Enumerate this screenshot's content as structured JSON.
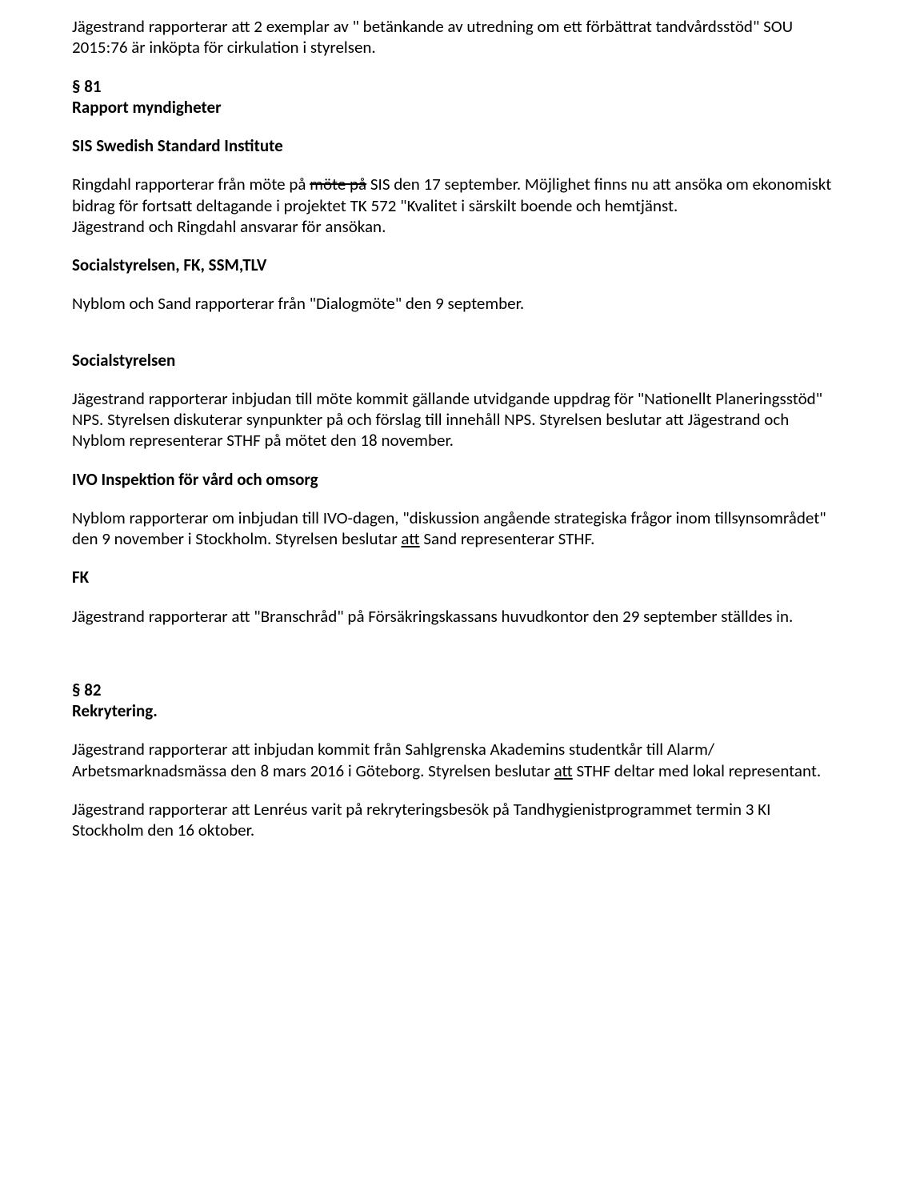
{
  "p_intro": "Jägestrand rapporterar att 2 exemplar av \" betänkande av utredning om ett förbättrat tandvårdsstöd\" SOU 2015:76 är inköpta för cirkulation i styrelsen.",
  "s81_num": "§ 81",
  "s81_title": "Rapport myndigheter",
  "sis_heading": "SIS Swedish Standard Institute",
  "sis_body_1": "Ringdahl rapporterar från möte på ",
  "sis_body_strike": "möte på",
  "sis_body_2": " SIS den 17 september. Möjlighet finns nu att ansöka om ekonomiskt bidrag för fortsatt deltagande i projektet TK 572 \"Kvalitet i särskilt boende och hemtjänst.",
  "sis_body_3": "Jägestrand och Ringdahl ansvarar för ansökan.",
  "ssm_heading": "Socialstyrelsen, FK, SSM,TLV",
  "ssm_body": "Nyblom och Sand rapporterar från \"Dialogmöte\" den 9 september.",
  "soc_heading": "Socialstyrelsen",
  "soc_body": "Jägestrand rapporterar inbjudan till möte kommit gällande utvidgande uppdrag för \"Nationellt Planeringsstöd\" NPS. Styrelsen diskuterar synpunkter på och förslag till innehåll NPS. Styrelsen beslutar att Jägestrand och Nyblom representerar STHF på mötet den 18 november.",
  "ivo_heading": "IVO Inspektion för vård och omsorg",
  "ivo_body_1": "Nyblom rapporterar om inbjudan till IVO-dagen, \"diskussion angående strategiska frågor inom tillsynsområdet\" den 9 november i Stockholm. Styrelsen beslutar ",
  "ivo_body_under": "att",
  "ivo_body_2": " Sand representerar STHF.",
  "fk_heading": "FK",
  "fk_body": "Jägestrand rapporterar att \"Branschråd\" på Försäkringskassans huvudkontor den 29 september ställdes in.",
  "s82_num": "§ 82",
  "s82_title": "Rekrytering.",
  "rek_body_1a": "Jägestrand rapporterar att inbjudan kommit från Sahlgrenska Akademins studentkår till Alarm/ Arbetsmarknadsmässa den 8 mars 2016 i Göteborg. Styrelsen beslutar ",
  "rek_body_1_under": "att",
  "rek_body_1b": " STHF deltar med lokal representant.",
  "rek_body_2": "Jägestrand rapporterar att Lenréus varit på rekryteringsbesök på Tandhygienistprogrammet termin 3 KI Stockholm den 16 oktober."
}
